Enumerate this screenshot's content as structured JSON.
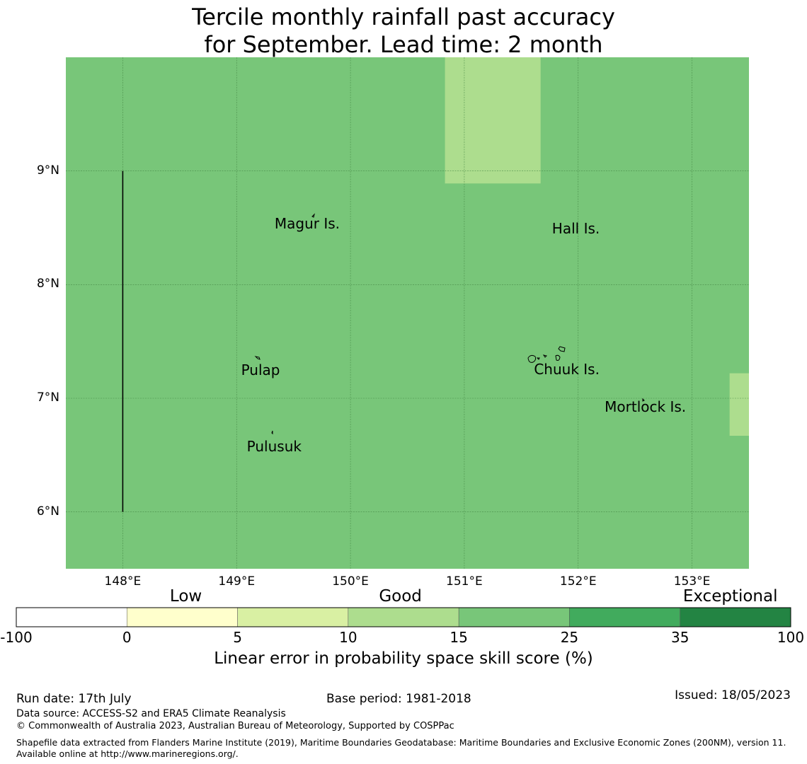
{
  "title_line1": "Tercile monthly rainfall past accuracy",
  "title_line2": "for September. Lead time: 2 month",
  "map": {
    "lon_range": [
      147.5,
      153.5
    ],
    "lat_range": [
      5.5,
      10.0
    ],
    "background_color": "#78c679",
    "lat_ticks": [
      {
        "value": 9,
        "label": "9°N"
      },
      {
        "value": 8,
        "label": "8°N"
      },
      {
        "value": 7,
        "label": "7°N"
      },
      {
        "value": 6,
        "label": "6°N"
      }
    ],
    "lon_ticks": [
      {
        "value": 148,
        "label": "148°E"
      },
      {
        "value": 149,
        "label": "149°E"
      },
      {
        "value": 150,
        "label": "150°E"
      },
      {
        "value": 151,
        "label": "151°E"
      },
      {
        "value": 152,
        "label": "152°E"
      },
      {
        "value": 153,
        "label": "153°E"
      }
    ],
    "skill_cells": [
      {
        "lon_min": 150.83,
        "lon_max": 151.67,
        "lat_min": 8.89,
        "lat_max": 10.0,
        "color": "#addd8e"
      },
      {
        "lon_min": 153.33,
        "lon_max": 153.5,
        "lat_min": 6.67,
        "lat_max": 7.22,
        "color": "#addd8e"
      }
    ],
    "boundary_line": {
      "lon": 148.0,
      "lat_min": 6.0,
      "lat_max": 9.0
    },
    "places": [
      {
        "name": "Magur Is.",
        "lon": 149.62,
        "lat": 8.53
      },
      {
        "name": "Hall Is.",
        "lon": 151.98,
        "lat": 8.49
      },
      {
        "name": "Pulap",
        "lon": 149.21,
        "lat": 7.24
      },
      {
        "name": "Chuuk Is.",
        "lon": 151.9,
        "lat": 7.25
      },
      {
        "name": "Mortlock Is.",
        "lon": 152.59,
        "lat": 6.92
      },
      {
        "name": "Pulusuk",
        "lon": 149.33,
        "lat": 6.57
      }
    ]
  },
  "colorbar": {
    "categories": [
      {
        "label": "Low",
        "position": 0.219
      },
      {
        "label": "Good",
        "position": 0.496
      },
      {
        "label": "Exceptional",
        "position": 0.922
      }
    ],
    "bins": [
      {
        "from": "-100",
        "to": "0",
        "color": "#ffffff"
      },
      {
        "from": "0",
        "to": "5",
        "color": "#ffffcc"
      },
      {
        "from": "5",
        "to": "10",
        "color": "#d9f0a3"
      },
      {
        "from": "10",
        "to": "15",
        "color": "#addd8e"
      },
      {
        "from": "15",
        "to": "25",
        "color": "#78c679"
      },
      {
        "from": "25",
        "to": "35",
        "color": "#41ab5d"
      },
      {
        "from": "35",
        "to": "100",
        "color": "#238443"
      }
    ],
    "tick_labels": [
      "-100",
      "0",
      "5",
      "10",
      "15",
      "25",
      "35",
      "100"
    ],
    "caption": "Linear error in probability space skill score (%)"
  },
  "footer": {
    "run_date": "Run date: 17th July",
    "base_period": "Base period: 1981-2018",
    "issued": "Issued: 18/05/2023",
    "data_source": "Data source: ACCESS-S2 and ERA5 Climate Reanalysis",
    "copyright": "© Commonwealth of Australia 2023, Australian Bureau of Meteorology, Supported by COSPPac",
    "shapefile_note": "Shapefile data extracted from Flanders Marine Institute (2019), Maritime Boundaries Geodatabase: Maritime Boundaries and Exclusive Economic Zones (200NM), version 11. Available online at http://www.marineregions.org/."
  }
}
